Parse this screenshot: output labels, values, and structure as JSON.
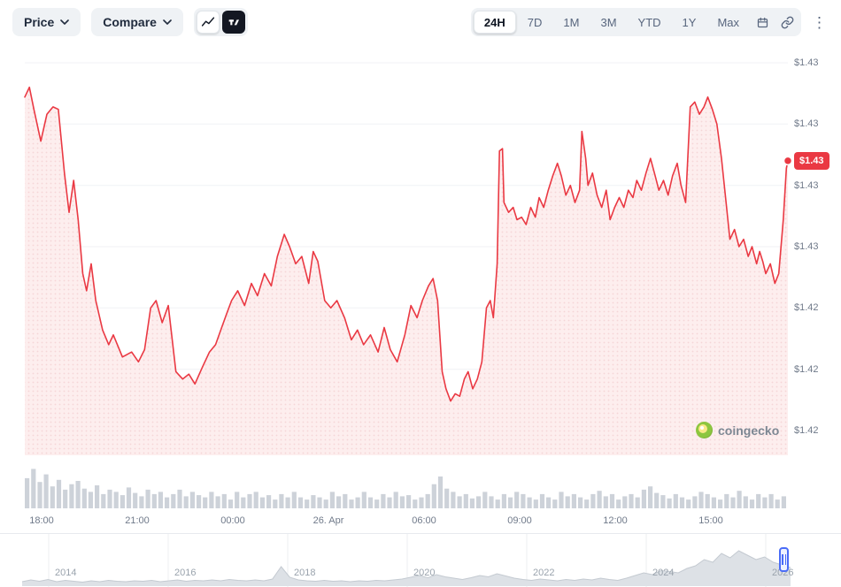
{
  "toolbar": {
    "price_label": "Price",
    "compare_label": "Compare",
    "ranges": [
      "24H",
      "7D",
      "1M",
      "3M",
      "YTD",
      "1Y",
      "Max"
    ],
    "selected_range": "24H",
    "more_glyph": "⋮",
    "icons": [
      "chevron-down-icon",
      "line-chart-icon",
      "tradingview-icon",
      "calendar-icon",
      "link-icon",
      "more-options-icon"
    ]
  },
  "watermark": {
    "text": "coingecko"
  },
  "navigator": {
    "year_labels": [
      "2014",
      "2016",
      "2018",
      "2020",
      "2022",
      "2024",
      "2026"
    ]
  },
  "colors": {
    "line_red": "#ea3943",
    "badge_red": "#ea3943",
    "area_pink_bg": "#fdeeee",
    "area_pink_dot": "#f6d5d7",
    "gridline": "#f0f2f5",
    "volume_gray": "#cdd2d9",
    "nav_fill": "#dde1e6",
    "nav_stroke": "#c4cad1",
    "nav_gridline": "#edeff2",
    "handle_blue": "#4a6cf7",
    "gecko_green": "#8dc63f",
    "gecko_yellow": "#f9e988"
  },
  "chart_data": {
    "type": "line",
    "title": "",
    "xlabel": "",
    "ylabel": "",
    "legend": "none",
    "grid": "horizontal",
    "x_tick_labels": [
      "18:00",
      "21:00",
      "00:00",
      "26. Apr",
      "06:00",
      "09:00",
      "12:00",
      "15:00"
    ],
    "y_tick_labels": [
      "$1.43",
      "$1.43",
      "$1.43",
      "$1.43",
      "$1.42",
      "$1.42",
      "$1.42"
    ],
    "y_tick_values": [
      1.4335,
      1.431,
      1.4285,
      1.426,
      1.4235,
      1.421,
      1.4185
    ],
    "ylim": [
      1.4185,
      1.4345
    ],
    "current_value": 1.43,
    "current_value_label": "$1.43",
    "series": [
      {
        "name": "price_usd_24h",
        "points": [
          [
            0,
            1.4321
          ],
          [
            0.006,
            1.4325
          ],
          [
            0.012,
            1.4316
          ],
          [
            0.021,
            1.4303
          ],
          [
            0.029,
            1.4314
          ],
          [
            0.037,
            1.4317
          ],
          [
            0.044,
            1.4316
          ],
          [
            0.052,
            1.429
          ],
          [
            0.058,
            1.4274
          ],
          [
            0.064,
            1.4287
          ],
          [
            0.07,
            1.4271
          ],
          [
            0.076,
            1.4249
          ],
          [
            0.081,
            1.4242
          ],
          [
            0.087,
            1.4253
          ],
          [
            0.093,
            1.4238
          ],
          [
            0.102,
            1.4226
          ],
          [
            0.11,
            1.422
          ],
          [
            0.116,
            1.4224
          ],
          [
            0.128,
            1.4215
          ],
          [
            0.14,
            1.4217
          ],
          [
            0.149,
            1.4213
          ],
          [
            0.157,
            1.4218
          ],
          [
            0.165,
            1.4235
          ],
          [
            0.172,
            1.4238
          ],
          [
            0.18,
            1.4229
          ],
          [
            0.188,
            1.4236
          ],
          [
            0.198,
            1.4209
          ],
          [
            0.207,
            1.4206
          ],
          [
            0.215,
            1.4208
          ],
          [
            0.223,
            1.4204
          ],
          [
            0.233,
            1.4211
          ],
          [
            0.242,
            1.4217
          ],
          [
            0.25,
            1.422
          ],
          [
            0.258,
            1.4227
          ],
          [
            0.265,
            1.4233
          ],
          [
            0.271,
            1.4238
          ],
          [
            0.279,
            1.4242
          ],
          [
            0.288,
            1.4236
          ],
          [
            0.297,
            1.4245
          ],
          [
            0.305,
            1.424
          ],
          [
            0.314,
            1.4249
          ],
          [
            0.323,
            1.4244
          ],
          [
            0.331,
            1.4256
          ],
          [
            0.34,
            1.4265
          ],
          [
            0.347,
            1.426
          ],
          [
            0.355,
            1.4253
          ],
          [
            0.363,
            1.4256
          ],
          [
            0.372,
            1.4245
          ],
          [
            0.378,
            1.4258
          ],
          [
            0.384,
            1.4254
          ],
          [
            0.393,
            1.4238
          ],
          [
            0.401,
            1.4235
          ],
          [
            0.409,
            1.4238
          ],
          [
            0.419,
            1.4231
          ],
          [
            0.428,
            1.4222
          ],
          [
            0.436,
            1.4226
          ],
          [
            0.444,
            1.422
          ],
          [
            0.453,
            1.4224
          ],
          [
            0.463,
            1.4217
          ],
          [
            0.471,
            1.4227
          ],
          [
            0.479,
            1.4218
          ],
          [
            0.488,
            1.4213
          ],
          [
            0.498,
            1.4224
          ],
          [
            0.506,
            1.4236
          ],
          [
            0.514,
            1.4231
          ],
          [
            0.521,
            1.4238
          ],
          [
            0.529,
            1.4244
          ],
          [
            0.535,
            1.4247
          ],
          [
            0.541,
            1.4238
          ],
          [
            0.547,
            1.4209
          ],
          [
            0.552,
            1.4202
          ],
          [
            0.558,
            1.4197
          ],
          [
            0.564,
            1.42
          ],
          [
            0.57,
            1.4199
          ],
          [
            0.576,
            1.4206
          ],
          [
            0.581,
            1.4209
          ],
          [
            0.587,
            1.4202
          ],
          [
            0.593,
            1.4206
          ],
          [
            0.599,
            1.4213
          ],
          [
            0.605,
            1.4235
          ],
          [
            0.61,
            1.4238
          ],
          [
            0.614,
            1.4231
          ],
          [
            0.619,
            1.4253
          ],
          [
            0.622,
            1.4299
          ],
          [
            0.626,
            1.43
          ],
          [
            0.628,
            1.4278
          ],
          [
            0.634,
            1.4274
          ],
          [
            0.64,
            1.4276
          ],
          [
            0.645,
            1.4271
          ],
          [
            0.651,
            1.4272
          ],
          [
            0.657,
            1.4269
          ],
          [
            0.663,
            1.4276
          ],
          [
            0.669,
            1.4272
          ],
          [
            0.674,
            1.428
          ],
          [
            0.68,
            1.4276
          ],
          [
            0.686,
            1.4283
          ],
          [
            0.692,
            1.4289
          ],
          [
            0.698,
            1.4294
          ],
          [
            0.703,
            1.4289
          ],
          [
            0.709,
            1.4281
          ],
          [
            0.715,
            1.4285
          ],
          [
            0.721,
            1.4278
          ],
          [
            0.727,
            1.4283
          ],
          [
            0.73,
            1.4307
          ],
          [
            0.735,
            1.4296
          ],
          [
            0.738,
            1.4285
          ],
          [
            0.744,
            1.429
          ],
          [
            0.75,
            1.4281
          ],
          [
            0.756,
            1.4276
          ],
          [
            0.762,
            1.4283
          ],
          [
            0.767,
            1.4271
          ],
          [
            0.773,
            1.4276
          ],
          [
            0.779,
            1.428
          ],
          [
            0.785,
            1.4276
          ],
          [
            0.791,
            1.4283
          ],
          [
            0.797,
            1.428
          ],
          [
            0.802,
            1.4287
          ],
          [
            0.808,
            1.4283
          ],
          [
            0.814,
            1.429
          ],
          [
            0.82,
            1.4296
          ],
          [
            0.826,
            1.4289
          ],
          [
            0.831,
            1.4283
          ],
          [
            0.837,
            1.4287
          ],
          [
            0.843,
            1.4281
          ],
          [
            0.849,
            1.4289
          ],
          [
            0.855,
            1.4294
          ],
          [
            0.86,
            1.4285
          ],
          [
            0.866,
            1.4278
          ],
          [
            0.872,
            1.4317
          ],
          [
            0.878,
            1.4319
          ],
          [
            0.884,
            1.4314
          ],
          [
            0.89,
            1.4317
          ],
          [
            0.895,
            1.4321
          ],
          [
            0.901,
            1.4316
          ],
          [
            0.907,
            1.431
          ],
          [
            0.913,
            1.4296
          ],
          [
            0.919,
            1.4278
          ],
          [
            0.924,
            1.4263
          ],
          [
            0.93,
            1.4267
          ],
          [
            0.936,
            1.426
          ],
          [
            0.942,
            1.4263
          ],
          [
            0.948,
            1.4256
          ],
          [
            0.953,
            1.426
          ],
          [
            0.959,
            1.4253
          ],
          [
            0.963,
            1.4258
          ],
          [
            0.967,
            1.4254
          ],
          [
            0.971,
            1.4249
          ],
          [
            0.977,
            1.4253
          ],
          [
            0.983,
            1.4245
          ],
          [
            0.988,
            1.4249
          ],
          [
            0.994,
            1.4271
          ],
          [
            0.998,
            1.4292
          ],
          [
            1,
            1.4295
          ]
        ]
      }
    ],
    "volume_norm": [
      0.55,
      0.72,
      0.48,
      0.62,
      0.4,
      0.52,
      0.34,
      0.44,
      0.5,
      0.36,
      0.3,
      0.42,
      0.26,
      0.34,
      0.3,
      0.24,
      0.38,
      0.28,
      0.22,
      0.34,
      0.26,
      0.3,
      0.2,
      0.26,
      0.34,
      0.22,
      0.3,
      0.24,
      0.2,
      0.3,
      0.22,
      0.26,
      0.16,
      0.3,
      0.2,
      0.26,
      0.3,
      0.2,
      0.24,
      0.16,
      0.26,
      0.2,
      0.3,
      0.2,
      0.16,
      0.24,
      0.2,
      0.16,
      0.3,
      0.22,
      0.26,
      0.16,
      0.2,
      0.3,
      0.2,
      0.16,
      0.26,
      0.2,
      0.3,
      0.22,
      0.24,
      0.16,
      0.2,
      0.26,
      0.44,
      0.58,
      0.36,
      0.3,
      0.22,
      0.26,
      0.18,
      0.22,
      0.3,
      0.22,
      0.16,
      0.26,
      0.2,
      0.3,
      0.26,
      0.2,
      0.16,
      0.26,
      0.2,
      0.16,
      0.3,
      0.22,
      0.26,
      0.2,
      0.16,
      0.26,
      0.32,
      0.22,
      0.26,
      0.16,
      0.22,
      0.26,
      0.2,
      0.34,
      0.4,
      0.28,
      0.24,
      0.18,
      0.26,
      0.2,
      0.16,
      0.22,
      0.3,
      0.26,
      0.2,
      0.16,
      0.26,
      0.2,
      0.32,
      0.22,
      0.16,
      0.26,
      0.2,
      0.26,
      0.16,
      0.22
    ],
    "navigator_norm": [
      0.08,
      0.12,
      0.09,
      0.13,
      0.08,
      0.11,
      0.09,
      0.07,
      0.1,
      0.08,
      0.11,
      0.09,
      0.08,
      0.1,
      0.09,
      0.11,
      0.08,
      0.1,
      0.12,
      0.09,
      0.11,
      0.1,
      0.12,
      0.1,
      0.13,
      0.11,
      0.1,
      0.12,
      0.1,
      0.14,
      0.42,
      0.18,
      0.12,
      0.1,
      0.09,
      0.11,
      0.09,
      0.1,
      0.08,
      0.1,
      0.09,
      0.11,
      0.1,
      0.12,
      0.14,
      0.18,
      0.22,
      0.17,
      0.24,
      0.19,
      0.16,
      0.13,
      0.17,
      0.22,
      0.19,
      0.26,
      0.21,
      0.16,
      0.13,
      0.11,
      0.14,
      0.12,
      0.1,
      0.13,
      0.11,
      0.14,
      0.12,
      0.16,
      0.13,
      0.11,
      0.16,
      0.22,
      0.28,
      0.24,
      0.33,
      0.31,
      0.28,
      0.38,
      0.44,
      0.58,
      0.52,
      0.72,
      0.62,
      0.78,
      0.68,
      0.58,
      0.64,
      0.52,
      0.46,
      0.4
    ]
  }
}
